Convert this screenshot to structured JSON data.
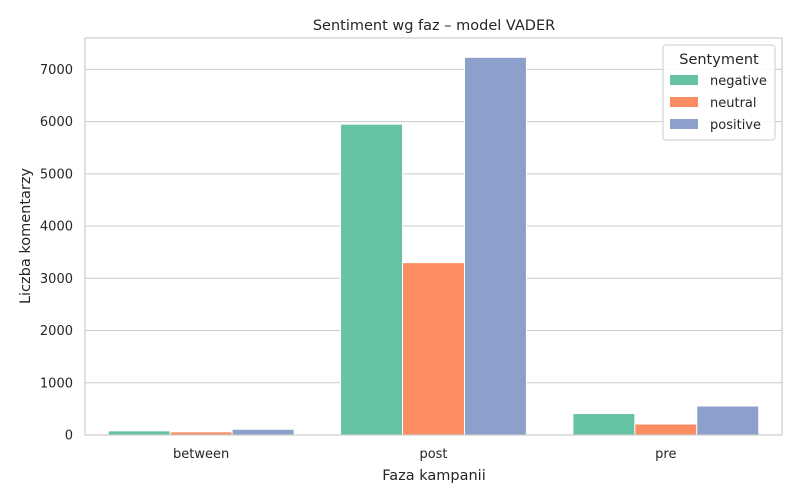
{
  "chart_data": {
    "type": "bar",
    "title": "Sentiment wg faz – model VADER",
    "xlabel": "Faza kampanii",
    "ylabel": "Liczba komentarzy",
    "categories": [
      "between",
      "post",
      "pre"
    ],
    "series": [
      {
        "name": "negative",
        "color": "#66c2a5",
        "values": [
          80,
          5950,
          410
        ]
      },
      {
        "name": "neutral",
        "color": "#fc8d62",
        "values": [
          60,
          3300,
          210
        ]
      },
      {
        "name": "positive",
        "color": "#8da0cb",
        "values": [
          110,
          7230,
          555
        ]
      }
    ],
    "ylim": [
      0,
      7600
    ],
    "yticks": [
      0,
      1000,
      2000,
      3000,
      4000,
      5000,
      6000,
      7000
    ],
    "ytick_labels": [
      "0",
      "1000",
      "2000",
      "3000",
      "4000",
      "5000",
      "6000",
      "7000"
    ],
    "grid": true,
    "legend": {
      "title": "Sentyment",
      "position": "top-right"
    }
  }
}
